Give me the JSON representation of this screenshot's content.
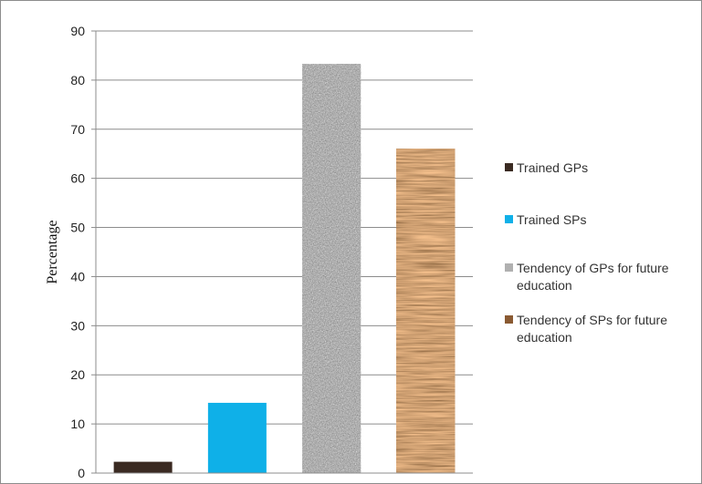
{
  "chart_data": {
    "type": "bar",
    "title": "",
    "xlabel": "",
    "ylabel": "Percentage",
    "ylim": [
      0,
      90
    ],
    "yticks": [
      0,
      10,
      20,
      30,
      40,
      50,
      60,
      70,
      80,
      90
    ],
    "grid": true,
    "legend_position": "right",
    "series": [
      {
        "name": "Trained GPs",
        "value": 2.3,
        "color": "#3a2a22",
        "fill": "dark-solid"
      },
      {
        "name": "Trained SPs",
        "value": 14.3,
        "color": "#0fb0e8",
        "fill": "solid"
      },
      {
        "name": "Tendency of GPs for future education",
        "value": 83.3,
        "color": "#9a9a9a",
        "fill": "speckled-granite"
      },
      {
        "name": "Tendency of SPs for future education",
        "value": 66,
        "color": "#8a5a32",
        "fill": "wood-grain"
      }
    ]
  }
}
